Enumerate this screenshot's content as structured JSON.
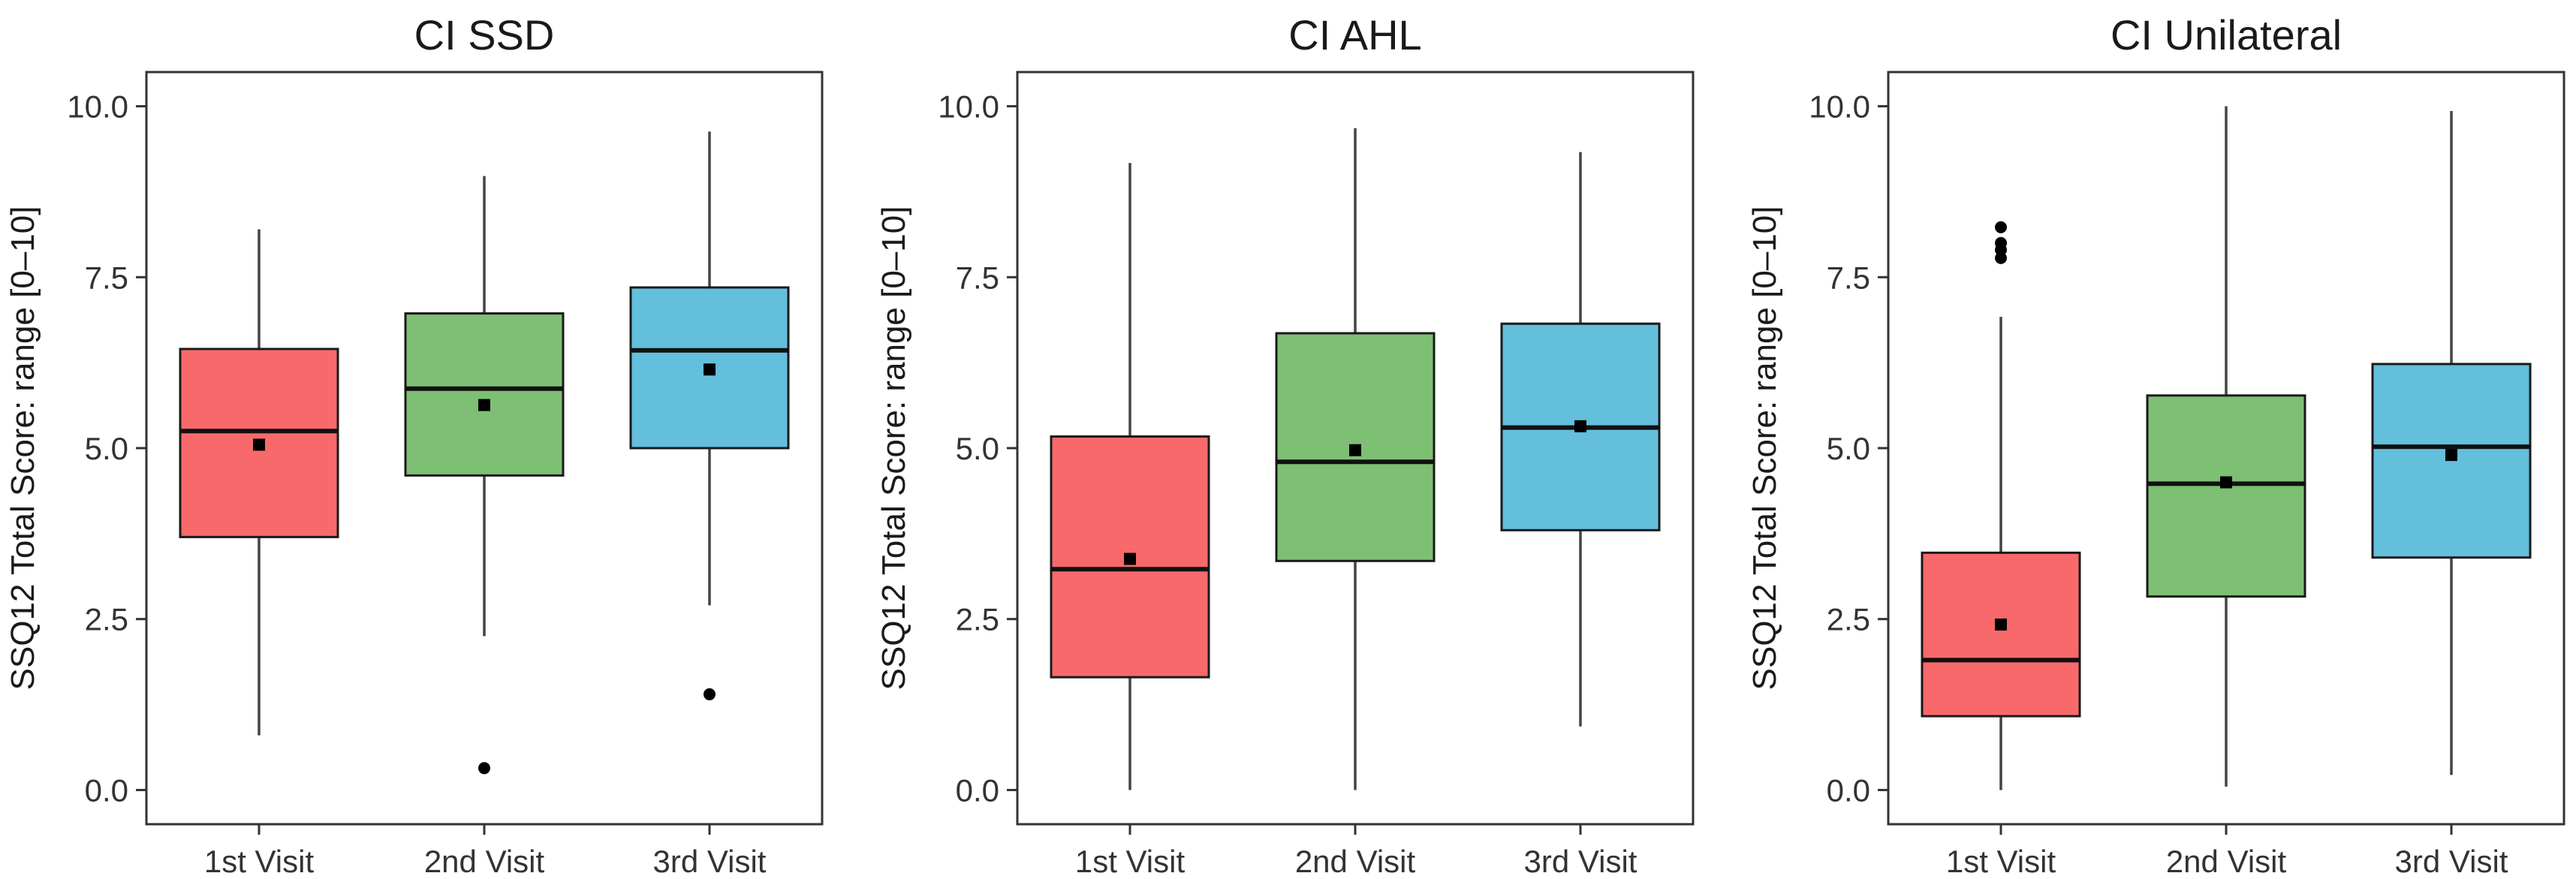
{
  "chart_data": [
    {
      "type": "boxplot",
      "title": "CI SSD",
      "ylabel": "SSQ12 Total Score: range [0–10]",
      "xlabel": "",
      "ylim": [
        -0.5,
        10.5
      ],
      "yticks": [
        "0.0",
        "2.5",
        "5.0",
        "7.5",
        "10.0"
      ],
      "grid": false,
      "legend": "none",
      "categories": [
        "1st Visit",
        "2nd Visit",
        "3rd Visit"
      ],
      "colors": [
        "#F8696B",
        "#7DBF73",
        "#63BFDC"
      ],
      "boxes": [
        {
          "category": "1st Visit",
          "whisker_low": 0.8,
          "q1": 3.7,
          "median": 5.25,
          "q3": 6.45,
          "whisker_high": 8.2,
          "mean": 5.05,
          "outliers": []
        },
        {
          "category": "2nd Visit",
          "whisker_low": 2.25,
          "q1": 4.6,
          "median": 5.87,
          "q3": 6.97,
          "whisker_high": 8.98,
          "mean": 5.63,
          "outliers": [
            0.32
          ]
        },
        {
          "category": "3rd Visit",
          "whisker_low": 2.7,
          "q1": 5.0,
          "median": 6.43,
          "q3": 7.35,
          "whisker_high": 9.63,
          "mean": 6.15,
          "outliers": [
            1.4
          ]
        }
      ]
    },
    {
      "type": "boxplot",
      "title": "CI AHL",
      "ylabel": "SSQ12 Total Score: range [0–10]",
      "xlabel": "",
      "ylim": [
        -0.5,
        10.5
      ],
      "yticks": [
        "0.0",
        "2.5",
        "5.0",
        "7.5",
        "10.0"
      ],
      "grid": false,
      "legend": "none",
      "categories": [
        "1st Visit",
        "2nd Visit",
        "3rd Visit"
      ],
      "colors": [
        "#F8696B",
        "#7DBF73",
        "#63BFDC"
      ],
      "boxes": [
        {
          "category": "1st Visit",
          "whisker_low": 0.0,
          "q1": 1.65,
          "median": 3.23,
          "q3": 5.17,
          "whisker_high": 9.17,
          "mean": 3.38,
          "outliers": []
        },
        {
          "category": "2nd Visit",
          "whisker_low": 0.0,
          "q1": 3.35,
          "median": 4.8,
          "q3": 6.68,
          "whisker_high": 9.68,
          "mean": 4.97,
          "outliers": []
        },
        {
          "category": "3rd Visit",
          "whisker_low": 0.93,
          "q1": 3.8,
          "median": 5.3,
          "q3": 6.82,
          "whisker_high": 9.33,
          "mean": 5.32,
          "outliers": []
        }
      ]
    },
    {
      "type": "boxplot",
      "title": "CI Unilateral",
      "ylabel": "SSQ12 Total Score: range [0–10]",
      "xlabel": "",
      "ylim": [
        -0.5,
        10.5
      ],
      "yticks": [
        "0.0",
        "2.5",
        "5.0",
        "7.5",
        "10.0"
      ],
      "grid": false,
      "legend": "none",
      "categories": [
        "1st Visit",
        "2nd Visit",
        "3rd Visit"
      ],
      "colors": [
        "#F8696B",
        "#7DBF73",
        "#63BFDC"
      ],
      "boxes": [
        {
          "category": "1st Visit",
          "whisker_low": 0.0,
          "q1": 1.08,
          "median": 1.9,
          "q3": 3.47,
          "whisker_high": 6.92,
          "mean": 2.42,
          "outliers": [
            7.78,
            7.9,
            8.0,
            8.23
          ]
        },
        {
          "category": "2nd Visit",
          "whisker_low": 0.05,
          "q1": 2.83,
          "median": 4.48,
          "q3": 5.77,
          "whisker_high": 10.0,
          "mean": 4.5,
          "outliers": []
        },
        {
          "category": "3rd Visit",
          "whisker_low": 0.22,
          "q1": 3.4,
          "median": 5.02,
          "q3": 6.23,
          "whisker_high": 9.93,
          "mean": 4.9,
          "outliers": []
        }
      ]
    }
  ]
}
